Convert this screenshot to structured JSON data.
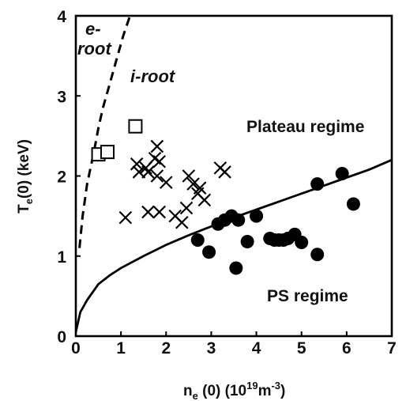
{
  "chart_data": {
    "type": "scatter",
    "xlabel": "n_e(0) (10^19 m^-3)",
    "ylabel": "T_e(0) (keV)",
    "xlim": [
      0,
      7
    ],
    "ylim": [
      0,
      4
    ],
    "xticks": [
      0,
      1,
      2,
      3,
      4,
      5,
      6,
      7
    ],
    "yticks": [
      0,
      1,
      2,
      3,
      4
    ],
    "grid": false,
    "annotations": {
      "e_root": [
        "e-",
        "root"
      ],
      "i_root": "i-root",
      "plateau": "Plateau regime",
      "ps": "PS regime"
    },
    "series": [
      {
        "marker": "square",
        "points": [
          [
            1.32,
            2.62
          ],
          [
            0.5,
            2.27
          ],
          [
            0.7,
            2.3
          ]
        ]
      },
      {
        "marker": "x",
        "points": [
          [
            1.8,
            2.37
          ],
          [
            1.75,
            2.22
          ],
          [
            1.85,
            2.18
          ],
          [
            1.55,
            2.1
          ],
          [
            1.35,
            2.15
          ],
          [
            1.4,
            2.05
          ],
          [
            1.6,
            2.05
          ],
          [
            1.8,
            2.0
          ],
          [
            2.0,
            1.92
          ],
          [
            2.5,
            2.0
          ],
          [
            2.6,
            1.9
          ],
          [
            2.75,
            1.85
          ],
          [
            2.85,
            1.7
          ],
          [
            3.2,
            2.1
          ],
          [
            3.3,
            2.05
          ],
          [
            2.2,
            1.5
          ],
          [
            2.35,
            1.42
          ],
          [
            2.45,
            1.6
          ],
          [
            1.6,
            1.55
          ],
          [
            1.85,
            1.55
          ],
          [
            1.1,
            1.48
          ],
          [
            2.7,
            1.78
          ]
        ]
      },
      {
        "marker": "filled-circle",
        "points": [
          [
            2.7,
            1.2
          ],
          [
            2.95,
            1.05
          ],
          [
            3.15,
            1.4
          ],
          [
            3.3,
            1.45
          ],
          [
            3.45,
            1.5
          ],
          [
            3.55,
            0.85
          ],
          [
            3.6,
            1.45
          ],
          [
            3.8,
            1.18
          ],
          [
            4.0,
            1.5
          ],
          [
            4.3,
            1.22
          ],
          [
            4.4,
            1.2
          ],
          [
            4.5,
            1.2
          ],
          [
            4.6,
            1.2
          ],
          [
            4.7,
            1.22
          ],
          [
            4.85,
            1.27
          ],
          [
            5.0,
            1.17
          ],
          [
            5.35,
            1.02
          ],
          [
            5.35,
            1.9
          ],
          [
            5.9,
            2.03
          ],
          [
            6.15,
            1.65
          ]
        ]
      }
    ],
    "curves": [
      {
        "style": "solid",
        "points": [
          [
            0,
            0.05
          ],
          [
            0.1,
            0.3
          ],
          [
            0.25,
            0.45
          ],
          [
            0.5,
            0.65
          ],
          [
            0.75,
            0.76
          ],
          [
            1,
            0.85
          ],
          [
            1.5,
            1.0
          ],
          [
            2,
            1.14
          ],
          [
            2.5,
            1.26
          ],
          [
            3,
            1.37
          ],
          [
            3.5,
            1.48
          ],
          [
            4,
            1.58
          ],
          [
            4.5,
            1.68
          ],
          [
            5,
            1.78
          ],
          [
            5.5,
            1.88
          ],
          [
            6,
            1.98
          ],
          [
            6.5,
            2.08
          ],
          [
            7,
            2.2
          ]
        ]
      },
      {
        "style": "dashed",
        "points": [
          [
            0.08,
            1.1
          ],
          [
            0.15,
            1.5
          ],
          [
            0.25,
            1.9
          ],
          [
            0.4,
            2.3
          ],
          [
            0.5,
            2.6
          ],
          [
            0.6,
            2.85
          ],
          [
            0.75,
            3.15
          ],
          [
            0.9,
            3.45
          ],
          [
            1.05,
            3.75
          ],
          [
            1.2,
            4.0
          ]
        ]
      }
    ]
  }
}
